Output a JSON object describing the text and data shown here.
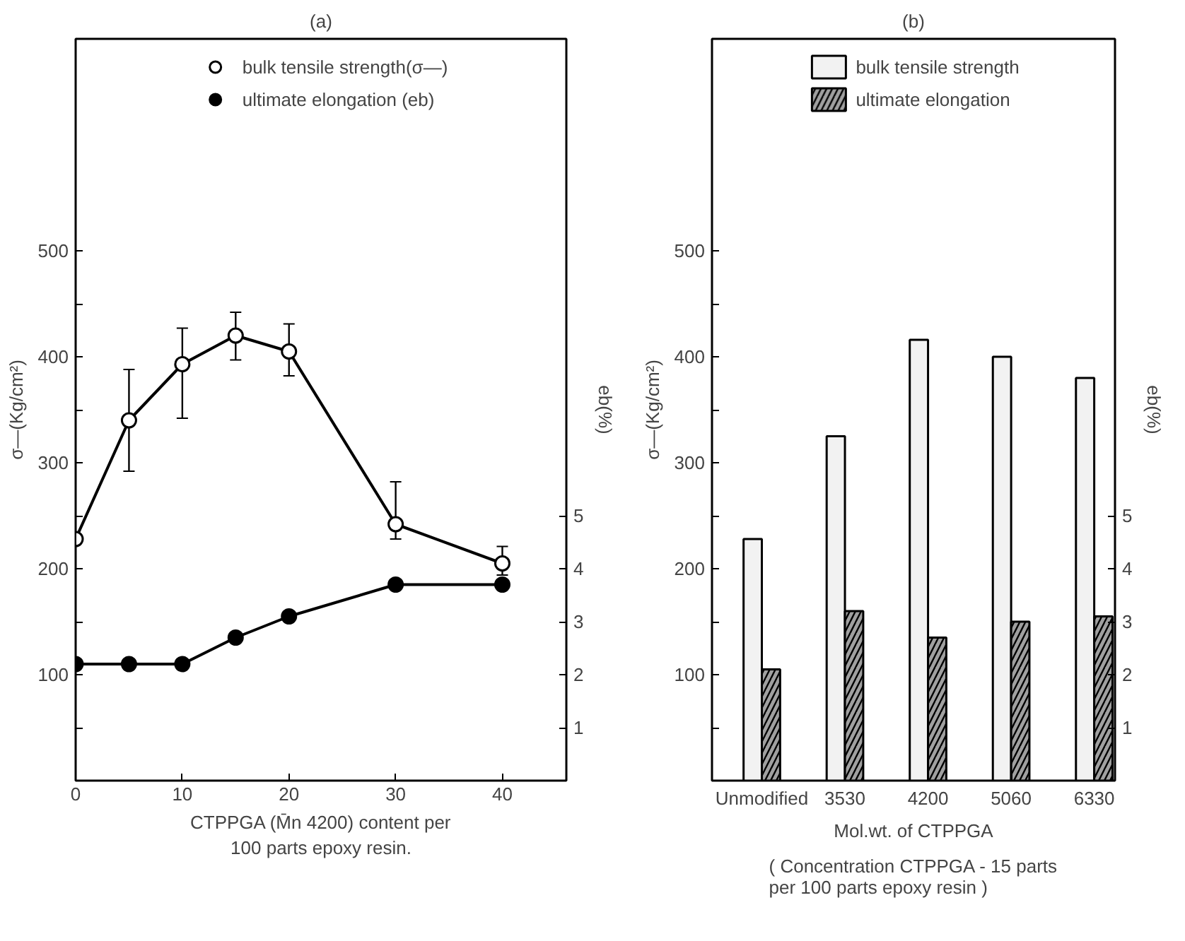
{
  "chart_data": [
    {
      "type": "line",
      "title": "(a)",
      "xlabel": "CTPPGA (M̄n 4200) content per\n100 parts epoxy resin.",
      "ylabel": "σ—(Kg/cm²)",
      "y2label": "eb(%)",
      "x": [
        0,
        5,
        10,
        15,
        20,
        30,
        40
      ],
      "series": [
        {
          "name": "bulk tensile strength(σ—)",
          "color": "#ffffff",
          "values": [
            228,
            340,
            393,
            420,
            405,
            242,
            205
          ],
          "errors": [
            null,
            [
              292,
              388
            ],
            [
              342,
              427
            ],
            [
              397,
              442
            ],
            [
              382,
              431
            ],
            [
              228,
              282
            ],
            [
              194,
              221
            ]
          ]
        },
        {
          "name": "ultimate elongation (eb)",
          "color": "#000000",
          "axis": "y2",
          "values": [
            2.2,
            2.2,
            2.2,
            2.7,
            3.1,
            3.7,
            3.7
          ]
        }
      ],
      "xlim": [
        0,
        46
      ],
      "xticks": [
        0,
        10,
        20,
        30,
        40
      ],
      "ylim": [
        0,
        700
      ],
      "yticks": [
        {
          "value": 50,
          "label": null
        },
        100,
        {
          "value": 150,
          "label": null
        },
        200,
        {
          "value": 250,
          "label": null
        },
        300,
        {
          "value": 350,
          "label": null
        },
        400,
        {
          "value": 450,
          "label": null
        },
        500
      ],
      "y2lim": [
        0,
        14
      ],
      "y2ticks": [
        1,
        2,
        3,
        4,
        5
      ],
      "marker": "circle",
      "grid": false,
      "legend": "top"
    },
    {
      "type": "bar",
      "title": "(b)",
      "xlabel": "Mol.wt. of CTPPGA",
      "ylabel": "σ—(Kg/cm²)",
      "y2label": "eb(%)",
      "annotations": [
        "( Concentration CTPPGA - 15 parts\nper 100 parts epoxy resin )"
      ],
      "categories": [
        "Unmodified",
        "3530",
        "4200",
        "5060",
        "6330"
      ],
      "series": [
        {
          "name": "bulk tensile strength",
          "color": "#f2f2f2",
          "values": [
            228,
            325,
            416,
            400,
            380
          ]
        },
        {
          "name": "ultimate elongation",
          "color": "#a0a0a0",
          "axis": "y2",
          "values": [
            2.1,
            3.2,
            2.7,
            3.0,
            3.1
          ]
        }
      ],
      "ylim": [
        0,
        700
      ],
      "yticks": [
        {
          "value": 50,
          "label": null
        },
        100,
        {
          "value": 150,
          "label": null
        },
        200,
        {
          "value": 250,
          "label": null
        },
        300,
        {
          "value": 350,
          "label": null
        },
        400,
        {
          "value": 450,
          "label": null
        },
        500
      ],
      "y2lim": [
        0,
        14
      ],
      "y2ticks": [
        1,
        2,
        3,
        4,
        5
      ],
      "grid": false,
      "legend": "top"
    }
  ]
}
